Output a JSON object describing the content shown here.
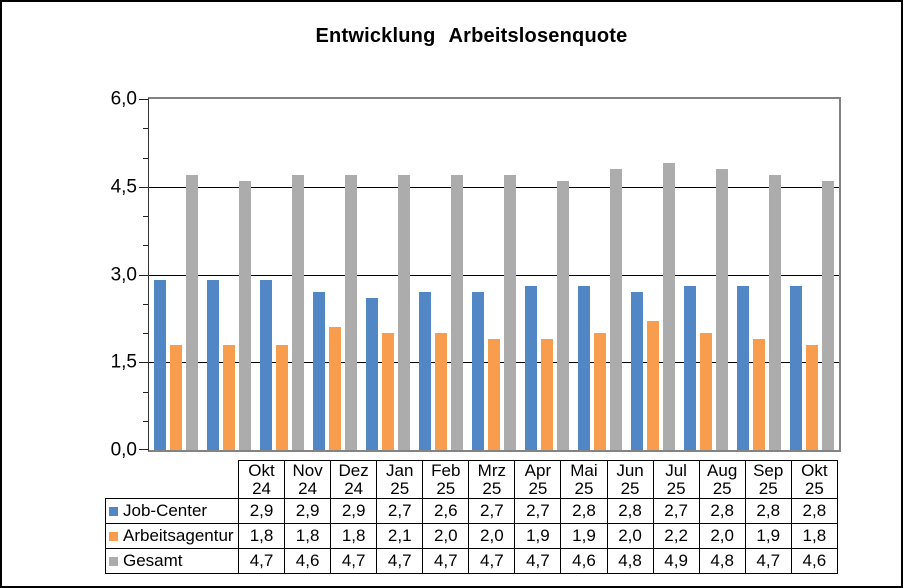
{
  "chart_data": {
    "type": "bar",
    "title": "Entwicklung Arbeitslosenquote",
    "categories": [
      [
        "Okt",
        "24"
      ],
      [
        "Nov",
        "24"
      ],
      [
        "Dez",
        "24"
      ],
      [
        "Jan",
        "25"
      ],
      [
        "Feb",
        "25"
      ],
      [
        "Mrz",
        "25"
      ],
      [
        "Apr",
        "25"
      ],
      [
        "Mai",
        "25"
      ],
      [
        "Jun",
        "25"
      ],
      [
        "Jul",
        "25"
      ],
      [
        "Aug",
        "25"
      ],
      [
        "Sep",
        "25"
      ],
      [
        "Okt",
        "25"
      ]
    ],
    "series": [
      {
        "name": "Job-Center",
        "color": "#5287C5",
        "values": [
          2.9,
          2.9,
          2.9,
          2.7,
          2.6,
          2.7,
          2.7,
          2.8,
          2.8,
          2.7,
          2.8,
          2.8,
          2.8
        ]
      },
      {
        "name": "Arbeitsagentur",
        "color": "#F89D4E",
        "values": [
          1.8,
          1.8,
          1.8,
          2.1,
          2.0,
          2.0,
          1.9,
          1.9,
          2.0,
          2.2,
          2.0,
          1.9,
          1.8
        ]
      },
      {
        "name": "Gesamt",
        "color": "#ACACAC",
        "values": [
          4.7,
          4.6,
          4.7,
          4.7,
          4.7,
          4.7,
          4.7,
          4.6,
          4.8,
          4.9,
          4.8,
          4.7,
          4.6
        ]
      }
    ],
    "ylim": [
      0,
      6
    ],
    "ytick_labels": [
      "6,0",
      "4,5",
      "3,0",
      "1,5",
      "0,0"
    ],
    "major_tick_unit": 1.5,
    "minor_tick_unit": 0.5,
    "grid": true,
    "legend_position": "data-table-rows",
    "number_format": "comma-decimal"
  },
  "colors": {
    "plot_border": "#838383",
    "gridline": "#000000",
    "table_border": "#000000",
    "text": "#000000"
  }
}
